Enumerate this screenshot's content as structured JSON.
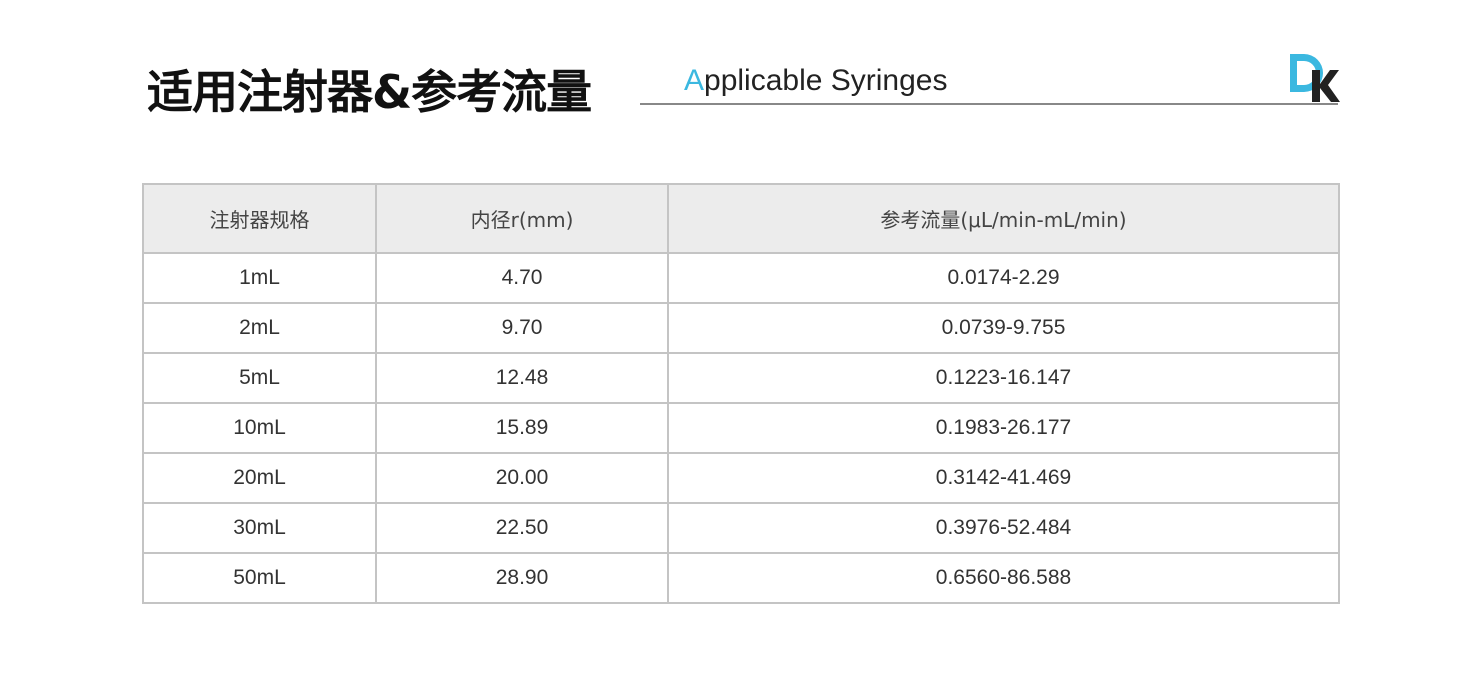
{
  "header": {
    "title": "适用注射器&参考流量",
    "subtitle_first": "A",
    "subtitle_rest": "pplicable Syringes",
    "logo": "DK",
    "accent": "#3bb8e0"
  },
  "table": {
    "columns": [
      "注射器规格",
      "内径r(mm)",
      "参考流量(μL/min-mL/min)"
    ],
    "rows": [
      [
        "1mL",
        "4.70",
        "0.0174-2.29"
      ],
      [
        "2mL",
        "9.70",
        "0.0739-9.755"
      ],
      [
        "5mL",
        "12.48",
        "0.1223-16.147"
      ],
      [
        "10mL",
        "15.89",
        "0.1983-26.177"
      ],
      [
        "20mL",
        "20.00",
        "0.3142-41.469"
      ],
      [
        "30mL",
        "22.50",
        "0.3976-52.484"
      ],
      [
        "50mL",
        "28.90",
        "0.6560-86.588"
      ]
    ]
  }
}
